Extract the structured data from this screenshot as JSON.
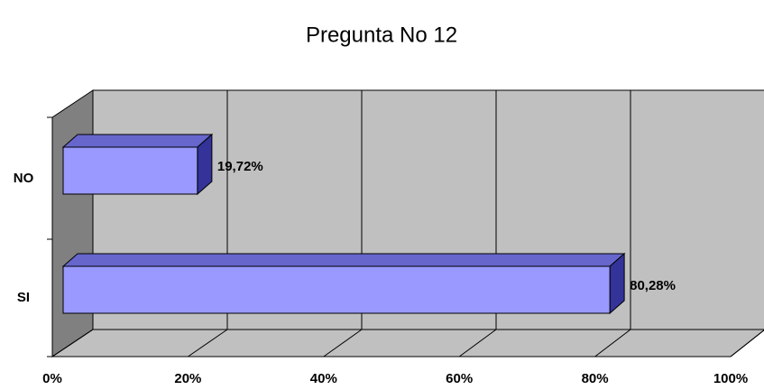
{
  "chart_data": {
    "type": "bar",
    "title": "Pregunta No 12",
    "categories": [
      "NO",
      "SI"
    ],
    "values": [
      19.72,
      80.28
    ],
    "value_labels": [
      "19,72%",
      "80,28%"
    ],
    "color": "#9999ff",
    "xlim": [
      0,
      100
    ],
    "xticks": [
      {
        "value": 0,
        "label": "0%"
      },
      {
        "value": 20,
        "label": "20%"
      },
      {
        "value": 40,
        "label": "40%"
      },
      {
        "value": 60,
        "label": "60%"
      },
      {
        "value": 80,
        "label": "80%"
      },
      {
        "value": 100,
        "label": "100%"
      }
    ],
    "grid": true
  }
}
